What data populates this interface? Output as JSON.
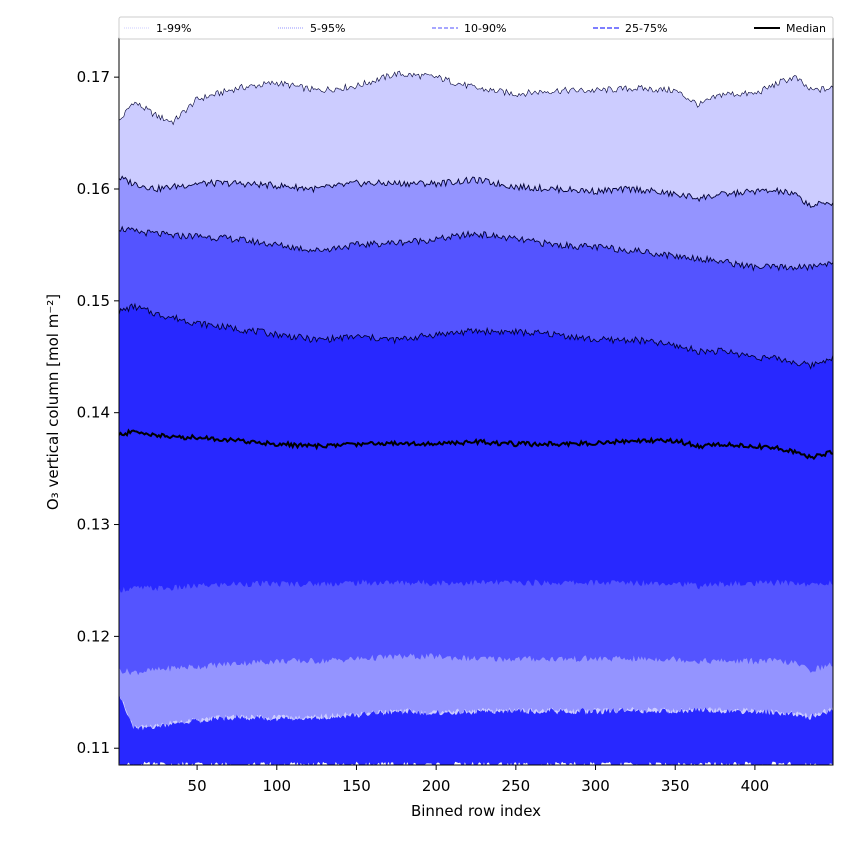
{
  "chart_data": {
    "type": "area",
    "title": "",
    "xlabel": "Binned row index",
    "ylabel": "O₃ vertical column [mol m⁻²]",
    "xlim": [
      1,
      449
    ],
    "ylim": [
      0.1085,
      0.1735
    ],
    "xticks": [
      50,
      100,
      150,
      200,
      250,
      300,
      350,
      400
    ],
    "yticks": [
      0.11,
      0.12,
      0.13,
      0.14,
      0.15,
      0.16,
      0.17
    ],
    "ytick_labels": [
      "0.11",
      "0.12",
      "0.13",
      "0.14",
      "0.15",
      "0.16",
      "0.17"
    ],
    "legend": {
      "placement": "top",
      "entries": [
        "1-99%",
        "5-95%",
        "10-90%",
        "25-75%",
        "Median"
      ]
    },
    "x_knots": [
      1,
      10,
      25,
      35,
      50,
      75,
      100,
      125,
      150,
      175,
      200,
      225,
      250,
      275,
      300,
      325,
      350,
      365,
      380,
      400,
      415,
      425,
      435,
      449
    ],
    "bands": [
      {
        "name": "1-99%",
        "color": "#ccccff",
        "upper": [
          0.166,
          0.1678,
          0.1665,
          0.166,
          0.168,
          0.169,
          0.1695,
          0.1688,
          0.1692,
          0.1703,
          0.17,
          0.169,
          0.1685,
          0.1688,
          0.1688,
          0.169,
          0.1688,
          0.1675,
          0.1685,
          0.1685,
          0.1695,
          0.17,
          0.1688,
          0.169
        ],
        "lower": [
          0.115,
          0.1118,
          0.112,
          0.1123,
          0.1125,
          0.1128,
          0.1127,
          0.1128,
          0.113,
          0.1133,
          0.1132,
          0.1133,
          0.1134,
          0.1133,
          0.1133,
          0.1134,
          0.1134,
          0.1134,
          0.1134,
          0.1133,
          0.1132,
          0.1131,
          0.1128,
          0.1135
        ]
      },
      {
        "name": "5-95%",
        "color": "#9494ff",
        "upper": [
          0.161,
          0.1605,
          0.16,
          0.1602,
          0.1605,
          0.1605,
          0.1603,
          0.16,
          0.1605,
          0.1605,
          0.1605,
          0.1608,
          0.1602,
          0.16,
          0.1598,
          0.16,
          0.1595,
          0.1592,
          0.1595,
          0.1598,
          0.1598,
          0.1595,
          0.1585,
          0.1588
        ],
        "lower": [
          0.117,
          0.1168,
          0.117,
          0.1172,
          0.1173,
          0.1176,
          0.1178,
          0.1178,
          0.118,
          0.1182,
          0.1182,
          0.118,
          0.118,
          0.118,
          0.118,
          0.118,
          0.118,
          0.1178,
          0.1178,
          0.1178,
          0.1178,
          0.1176,
          0.117,
          0.1175
        ]
      },
      {
        "name": "10-90%",
        "color": "#5454ff",
        "upper": [
          0.1565,
          0.1562,
          0.156,
          0.1558,
          0.1558,
          0.1555,
          0.155,
          0.1545,
          0.155,
          0.1552,
          0.1555,
          0.156,
          0.1555,
          0.155,
          0.1548,
          0.1545,
          0.154,
          0.1538,
          0.1535,
          0.153,
          0.153,
          0.153,
          0.153,
          0.1535
        ],
        "lower": [
          0.1242,
          0.1243,
          0.1243,
          0.1243,
          0.1245,
          0.1247,
          0.1247,
          0.1247,
          0.1248,
          0.1248,
          0.1248,
          0.1248,
          0.1248,
          0.1248,
          0.1248,
          0.1248,
          0.1248,
          0.1245,
          0.1247,
          0.1247,
          0.1248,
          0.1248,
          0.1246,
          0.1248
        ]
      },
      {
        "name": "25-75%",
        "color": "#2828ff",
        "upper": [
          0.149,
          0.1495,
          0.1488,
          0.1485,
          0.148,
          0.1475,
          0.147,
          0.1465,
          0.1468,
          0.1465,
          0.147,
          0.1473,
          0.1472,
          0.147,
          0.1465,
          0.1465,
          0.146,
          0.1455,
          0.1455,
          0.145,
          0.1448,
          0.1445,
          0.1442,
          0.145
        ],
        "lower": [
          0.1085,
          0.1085,
          0.1085,
          0.1085,
          0.1085,
          0.1085,
          0.1085,
          0.1085,
          0.1085,
          0.1085,
          0.1085,
          0.1085,
          0.1085,
          0.1085,
          0.1085,
          0.1085,
          0.1085,
          0.1085,
          0.1085,
          0.1085,
          0.1085,
          0.1085,
          0.1085,
          0.1085
        ]
      }
    ],
    "inner_fill": {
      "color": "#2828ff",
      "upper_from": "10-90%.lower",
      "lower": [
        0.115,
        0.1118,
        0.112,
        0.1123,
        0.1125,
        0.1128,
        0.1127,
        0.1128,
        0.113,
        0.1133,
        0.1132,
        0.1133,
        0.1134,
        0.1133,
        0.1133,
        0.1134,
        0.1134,
        0.1134,
        0.1134,
        0.1133,
        0.1132,
        0.1131,
        0.1128,
        0.1135
      ]
    },
    "median": {
      "name": "Median",
      "color": "#000000",
      "values": [
        0.138,
        0.1383,
        0.138,
        0.1378,
        0.1378,
        0.1375,
        0.1372,
        0.137,
        0.1372,
        0.1373,
        0.1372,
        0.1374,
        0.1372,
        0.1372,
        0.1373,
        0.1375,
        0.1375,
        0.137,
        0.1372,
        0.137,
        0.1368,
        0.1365,
        0.136,
        0.1365
      ]
    }
  }
}
